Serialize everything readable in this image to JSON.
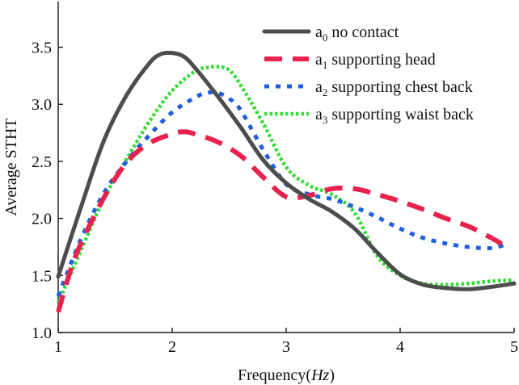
{
  "chart_data": {
    "type": "line",
    "title": "",
    "xlabel": "Frequency(",
    "xlabel_italic": "Hz",
    "xlabel_suffix": ")",
    "ylabel": "Average  STHT",
    "xlim": [
      1,
      5
    ],
    "ylim": [
      1.0,
      3.9
    ],
    "xticks": [
      1,
      2,
      3,
      4,
      5
    ],
    "xtick_labels": [
      "1",
      "2",
      "3",
      "4",
      "5"
    ],
    "yticks": [
      1.0,
      1.5,
      2.0,
      2.5,
      3.0,
      3.5
    ],
    "ytick_labels": [
      "1.0",
      "1.5",
      "2.0",
      "2.5",
      "3.0",
      "3.5"
    ],
    "grid": false,
    "legend_position": "top-right",
    "series": [
      {
        "name": "a0 no contact",
        "label_prefix": "a",
        "label_sub": "0",
        "label_text": " no contact",
        "color": "#4d4d4d",
        "style": "solid",
        "x": [
          1.0,
          1.2,
          1.4,
          1.6,
          1.8,
          1.9,
          2.0,
          2.1,
          2.2,
          2.4,
          2.6,
          2.8,
          3.0,
          3.2,
          3.4,
          3.6,
          3.8,
          4.0,
          4.2,
          4.4,
          4.6,
          4.8,
          5.0
        ],
        "y": [
          1.49,
          2.1,
          2.68,
          3.08,
          3.36,
          3.44,
          3.45,
          3.42,
          3.32,
          3.07,
          2.8,
          2.51,
          2.31,
          2.17,
          2.06,
          1.91,
          1.7,
          1.51,
          1.42,
          1.39,
          1.38,
          1.4,
          1.43
        ]
      },
      {
        "name": "a1 supporting head",
        "label_prefix": "a",
        "label_sub": "1",
        "label_text": " supporting head",
        "color": "#e8224d",
        "style": "dashed",
        "x": [
          1.0,
          1.1,
          1.2,
          1.4,
          1.6,
          1.8,
          2.0,
          2.1,
          2.2,
          2.4,
          2.6,
          2.8,
          3.0,
          3.2,
          3.4,
          3.6,
          3.8,
          4.0,
          4.2,
          4.4,
          4.6,
          4.8,
          4.95
        ],
        "y": [
          1.18,
          1.52,
          1.78,
          2.18,
          2.49,
          2.66,
          2.74,
          2.76,
          2.74,
          2.67,
          2.55,
          2.36,
          2.19,
          2.2,
          2.26,
          2.26,
          2.21,
          2.15,
          2.08,
          2.0,
          1.93,
          1.83,
          1.74
        ]
      },
      {
        "name": "a2 supporting chest back",
        "label_prefix": "a",
        "label_sub": "2",
        "label_text": " supporting chest back",
        "color": "#1f5fe0",
        "style": "dotted",
        "x": [
          1.0,
          1.2,
          1.4,
          1.6,
          1.8,
          2.0,
          2.2,
          2.3,
          2.4,
          2.5,
          2.6,
          2.8,
          3.0,
          3.2,
          3.4,
          3.6,
          3.8,
          4.0,
          4.2,
          4.4,
          4.6,
          4.8,
          4.95
        ],
        "y": [
          1.32,
          1.82,
          2.22,
          2.5,
          2.73,
          2.93,
          3.06,
          3.1,
          3.1,
          3.05,
          2.95,
          2.6,
          2.3,
          2.21,
          2.17,
          2.1,
          2.01,
          1.91,
          1.83,
          1.78,
          1.75,
          1.74,
          1.78
        ]
      },
      {
        "name": "a3 supporting waist back",
        "label_prefix": "a",
        "label_sub": "3",
        "label_text": " supporting waist back",
        "color": "#33dd33",
        "style": "dotted",
        "x": [
          1.0,
          1.2,
          1.4,
          1.6,
          1.8,
          2.0,
          2.2,
          2.3,
          2.4,
          2.5,
          2.6,
          2.8,
          3.0,
          3.2,
          3.4,
          3.6,
          3.8,
          4.0,
          4.2,
          4.4,
          4.6,
          4.8,
          5.0
        ],
        "y": [
          1.26,
          1.72,
          2.17,
          2.52,
          2.85,
          3.12,
          3.29,
          3.32,
          3.33,
          3.3,
          3.17,
          2.83,
          2.45,
          2.29,
          2.21,
          2.05,
          1.67,
          1.5,
          1.43,
          1.42,
          1.43,
          1.45,
          1.46
        ]
      }
    ]
  }
}
